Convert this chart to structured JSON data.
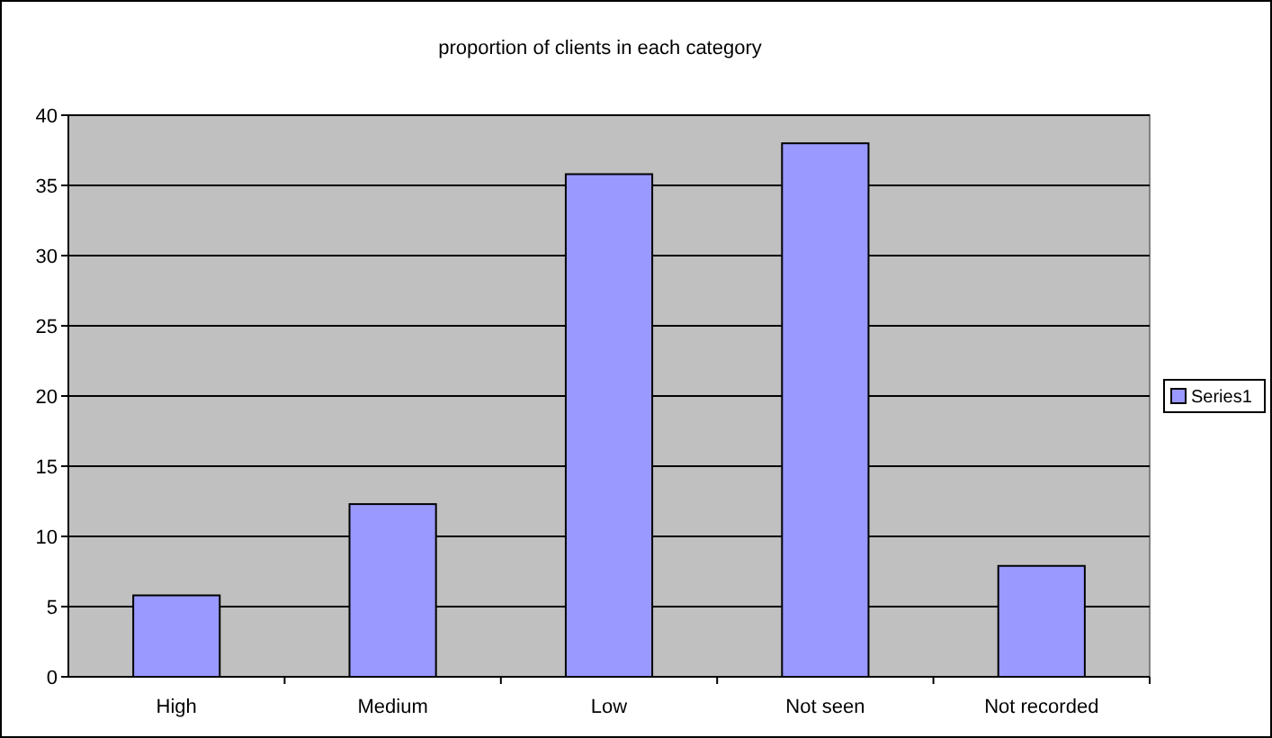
{
  "chart_data": {
    "type": "bar",
    "title": "proportion of clients in each category",
    "categories": [
      "High",
      "Medium",
      "Low",
      "Not seen",
      "Not recorded"
    ],
    "series": [
      {
        "name": "Series1",
        "color": "#9999ff",
        "values": [
          5.8,
          12.3,
          35.8,
          38.0,
          7.9
        ]
      }
    ],
    "ylim": [
      0,
      40
    ],
    "yticks": [
      0,
      5,
      10,
      15,
      20,
      25,
      30,
      35,
      40
    ],
    "grid": "y",
    "legend": "right"
  }
}
